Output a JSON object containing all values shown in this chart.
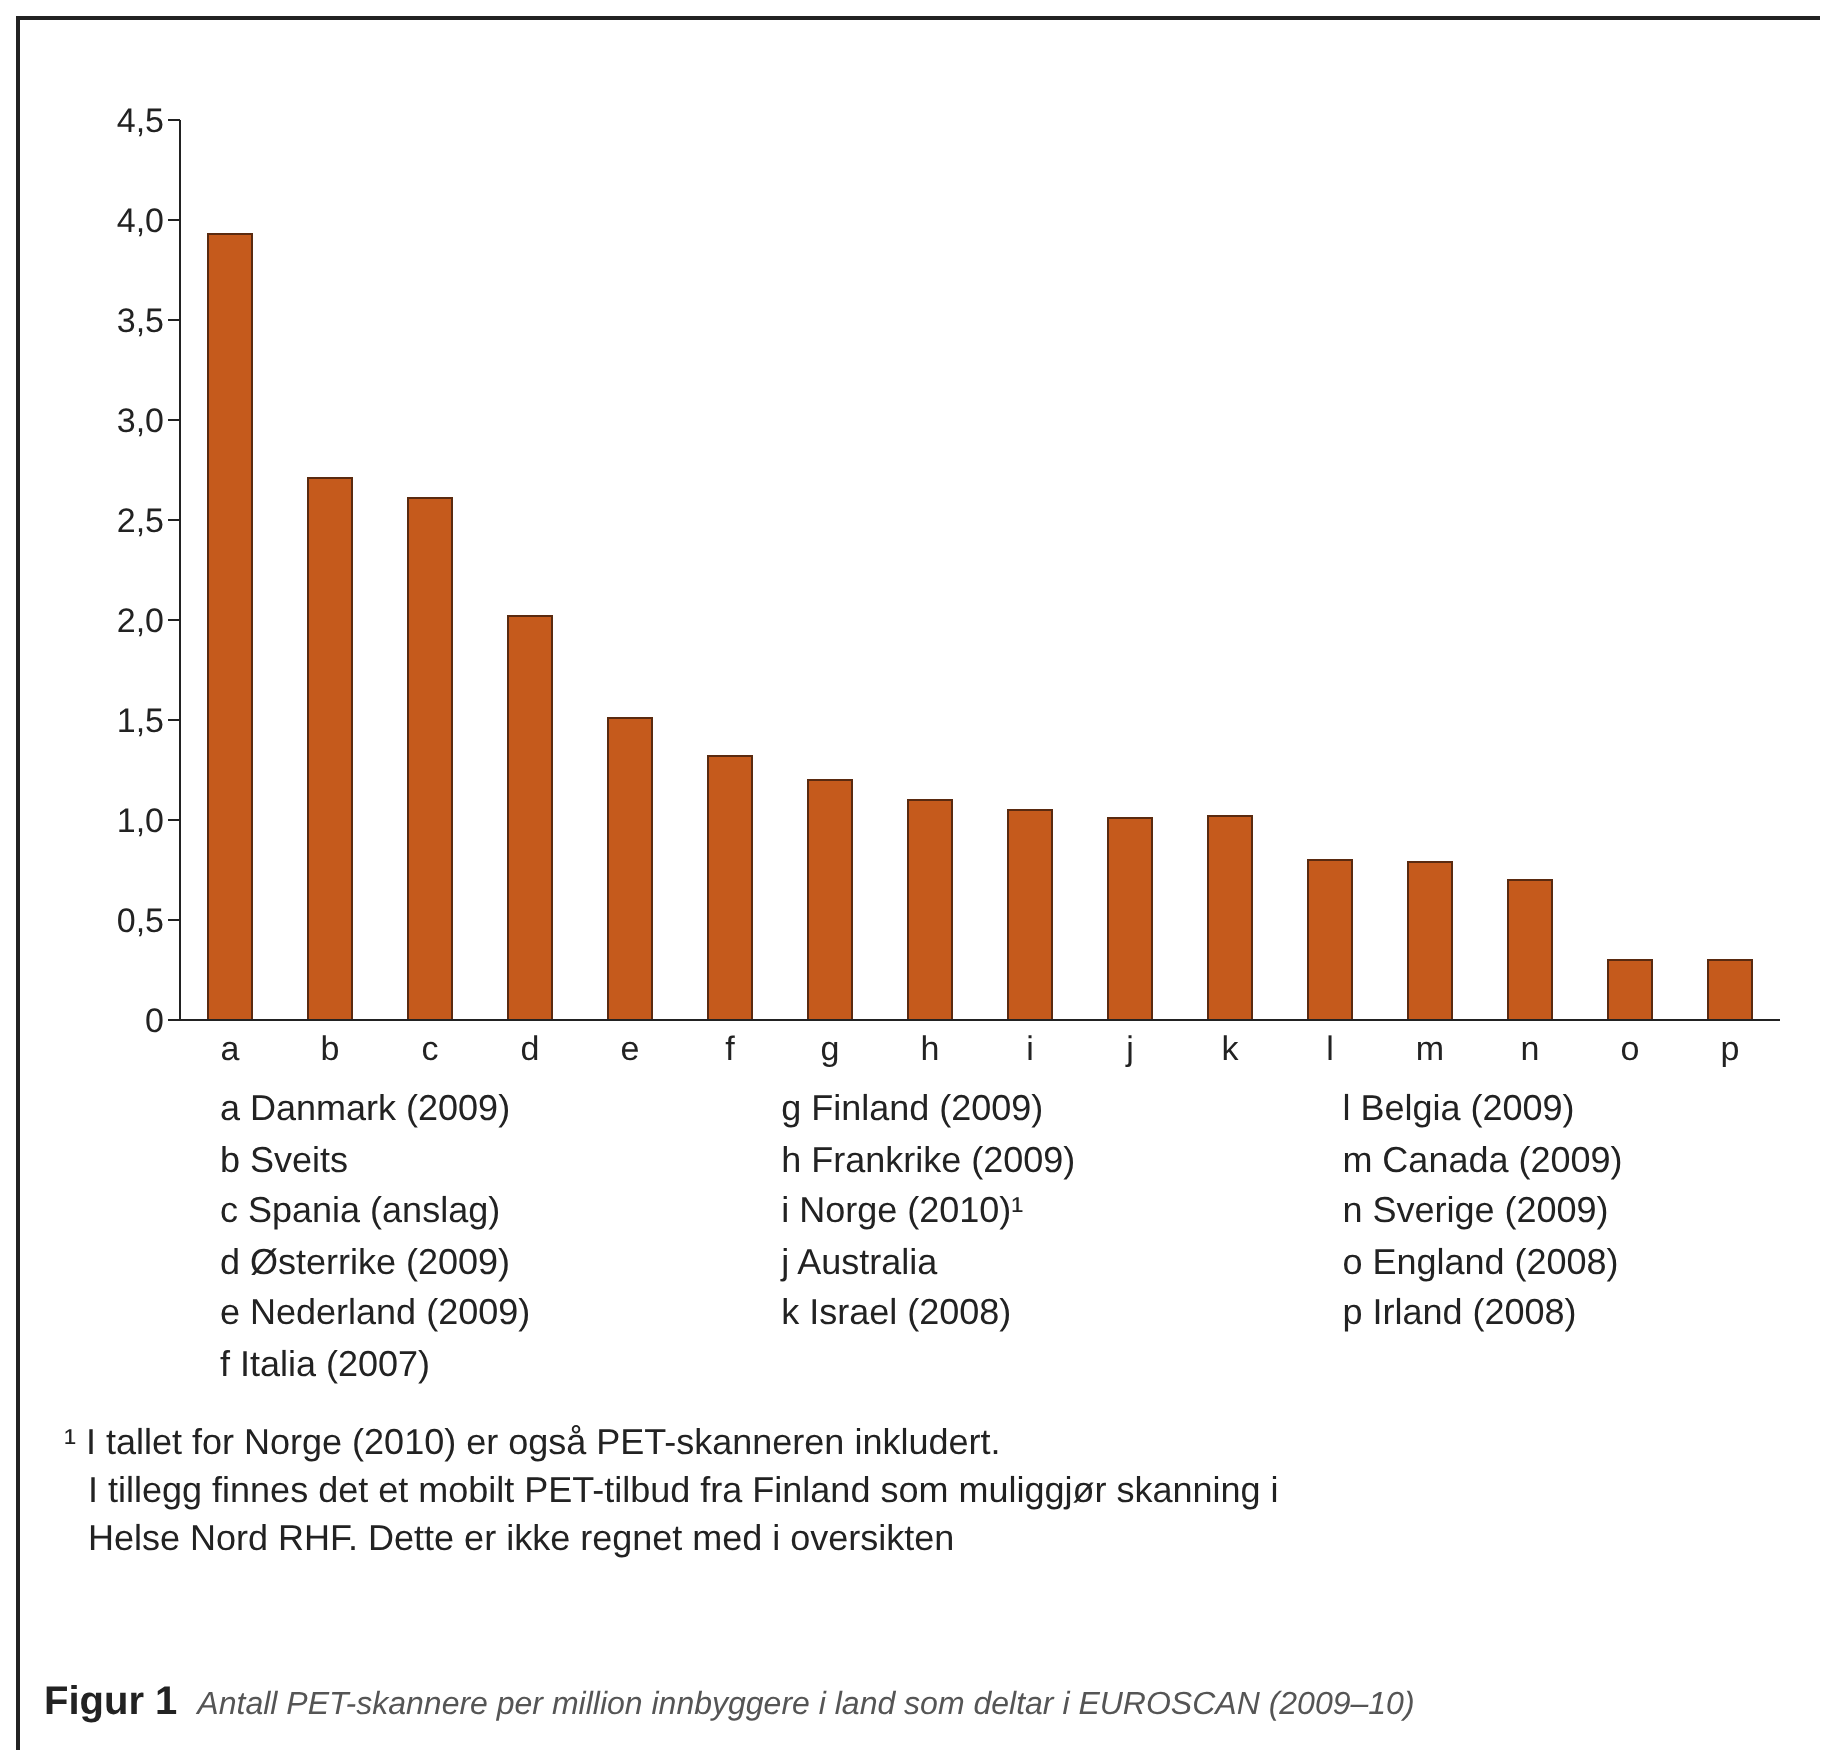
{
  "chart_data": {
    "type": "bar",
    "title": "Figur 1",
    "subtitle": "Antall PET-skannere per million innbyggere i land som deltar i EUROSCAN (2009–10)",
    "categories": [
      "a",
      "b",
      "c",
      "d",
      "e",
      "f",
      "g",
      "h",
      "i",
      "j",
      "k",
      "l",
      "m",
      "n",
      "o",
      "p"
    ],
    "values": [
      3.93,
      2.71,
      2.61,
      2.02,
      1.51,
      1.32,
      1.2,
      1.1,
      1.05,
      1.01,
      1.02,
      0.8,
      0.79,
      0.7,
      0.3,
      0.3
    ],
    "color": "#c55a1c",
    "ylim": [
      0,
      4.5
    ],
    "yticks": [
      {
        "value": 0,
        "label": "0"
      },
      {
        "value": 0.5,
        "label": "0,5"
      },
      {
        "value": 1,
        "label": "1,0"
      },
      {
        "value": 1.5,
        "label": "1,5"
      },
      {
        "value": 2,
        "label": "2,0"
      },
      {
        "value": 2.5,
        "label": "2,5"
      },
      {
        "value": 3,
        "label": "3,0"
      },
      {
        "value": 3.5,
        "label": "3,5"
      },
      {
        "value": 4,
        "label": "4,0"
      },
      {
        "value": 4.5,
        "label": "4,5"
      }
    ],
    "grid": false,
    "annotations": [
      "a Danmark (2009)",
      "b Sveits",
      "c Spania (anslag)",
      "d Østerrike (2009)",
      "e Nederland (2009)",
      "f Italia (2007)",
      "g Finland (2009)",
      "h Frankrike (2009)",
      "i Norge (2010)¹",
      "j Australia",
      "k Israel (2008)",
      "l Belgia (2009)",
      "m Canada (2009)",
      "n Sverige (2009)",
      "o England (2008)",
      "p Irland (2008)",
      "¹ I tallet for Norge (2010) er også PET-skanneren inkludert.",
      "I tillegg finnes det et mobilt PET-tilbud fra Finland som muliggjør skanning i",
      "Helse Nord RHF. Dette er ikke regnet med i oversikten"
    ]
  }
}
